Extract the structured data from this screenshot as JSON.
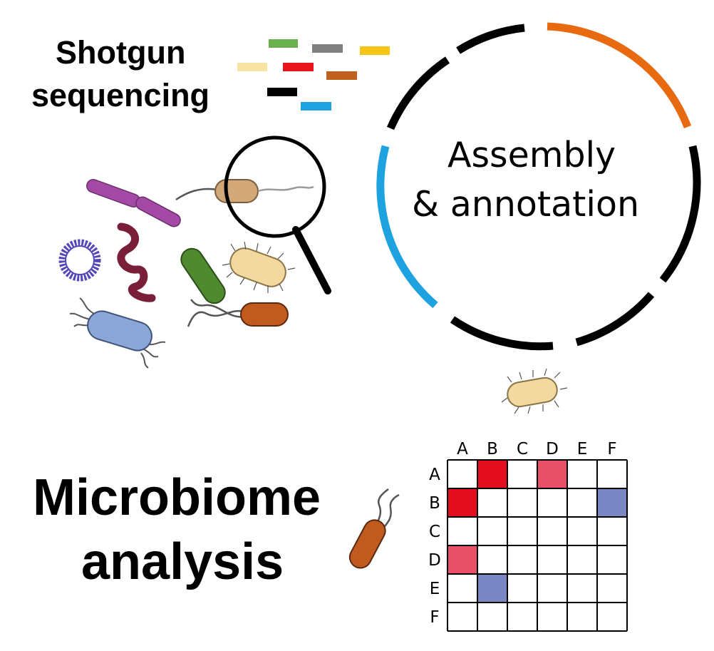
{
  "shotgun": {
    "line1": "Shotgun",
    "line2": "sequencing",
    "read_colors": [
      "#6ab04c",
      "#808080",
      "#f5c518",
      "#f7e3a4",
      "#e8141c",
      "#c0601e",
      "#000000",
      "#1ea3e0"
    ]
  },
  "assembly": {
    "line1": "Assembly",
    "line2": "& annotation",
    "arc_colors": {
      "orange": "#e86a10",
      "blue": "#1ea3e0",
      "black": "#000000"
    }
  },
  "analysis": {
    "line1": "Microbiome",
    "line2": "analysis"
  },
  "matrix": {
    "col_labels": [
      "A",
      "B",
      "C",
      "D",
      "E",
      "F"
    ],
    "row_labels": [
      "A",
      "B",
      "C",
      "D",
      "E",
      "F"
    ],
    "highlighted_cells": [
      {
        "row": "A",
        "col": "B",
        "color": "#e30f1e"
      },
      {
        "row": "A",
        "col": "D",
        "color": "#e8506a"
      },
      {
        "row": "B",
        "col": "A",
        "color": "#e30f1e"
      },
      {
        "row": "B",
        "col": "F",
        "color": "#7b86c4"
      },
      {
        "row": "D",
        "col": "A",
        "color": "#e8506a"
      },
      {
        "row": "E",
        "col": "B",
        "color": "#7b86c4"
      }
    ]
  },
  "microbes": {
    "colors": {
      "magenta_rod": "#a44aa6",
      "spiral": "#7a1f3a",
      "ring": "#5547b8",
      "green_rod": "#4f8a2f",
      "tan_rod": "#f3d9a0",
      "brown_rod": "#c05a1e",
      "blue_rod": "#8aa7d8",
      "magnified_rod": "#d2a878"
    }
  }
}
